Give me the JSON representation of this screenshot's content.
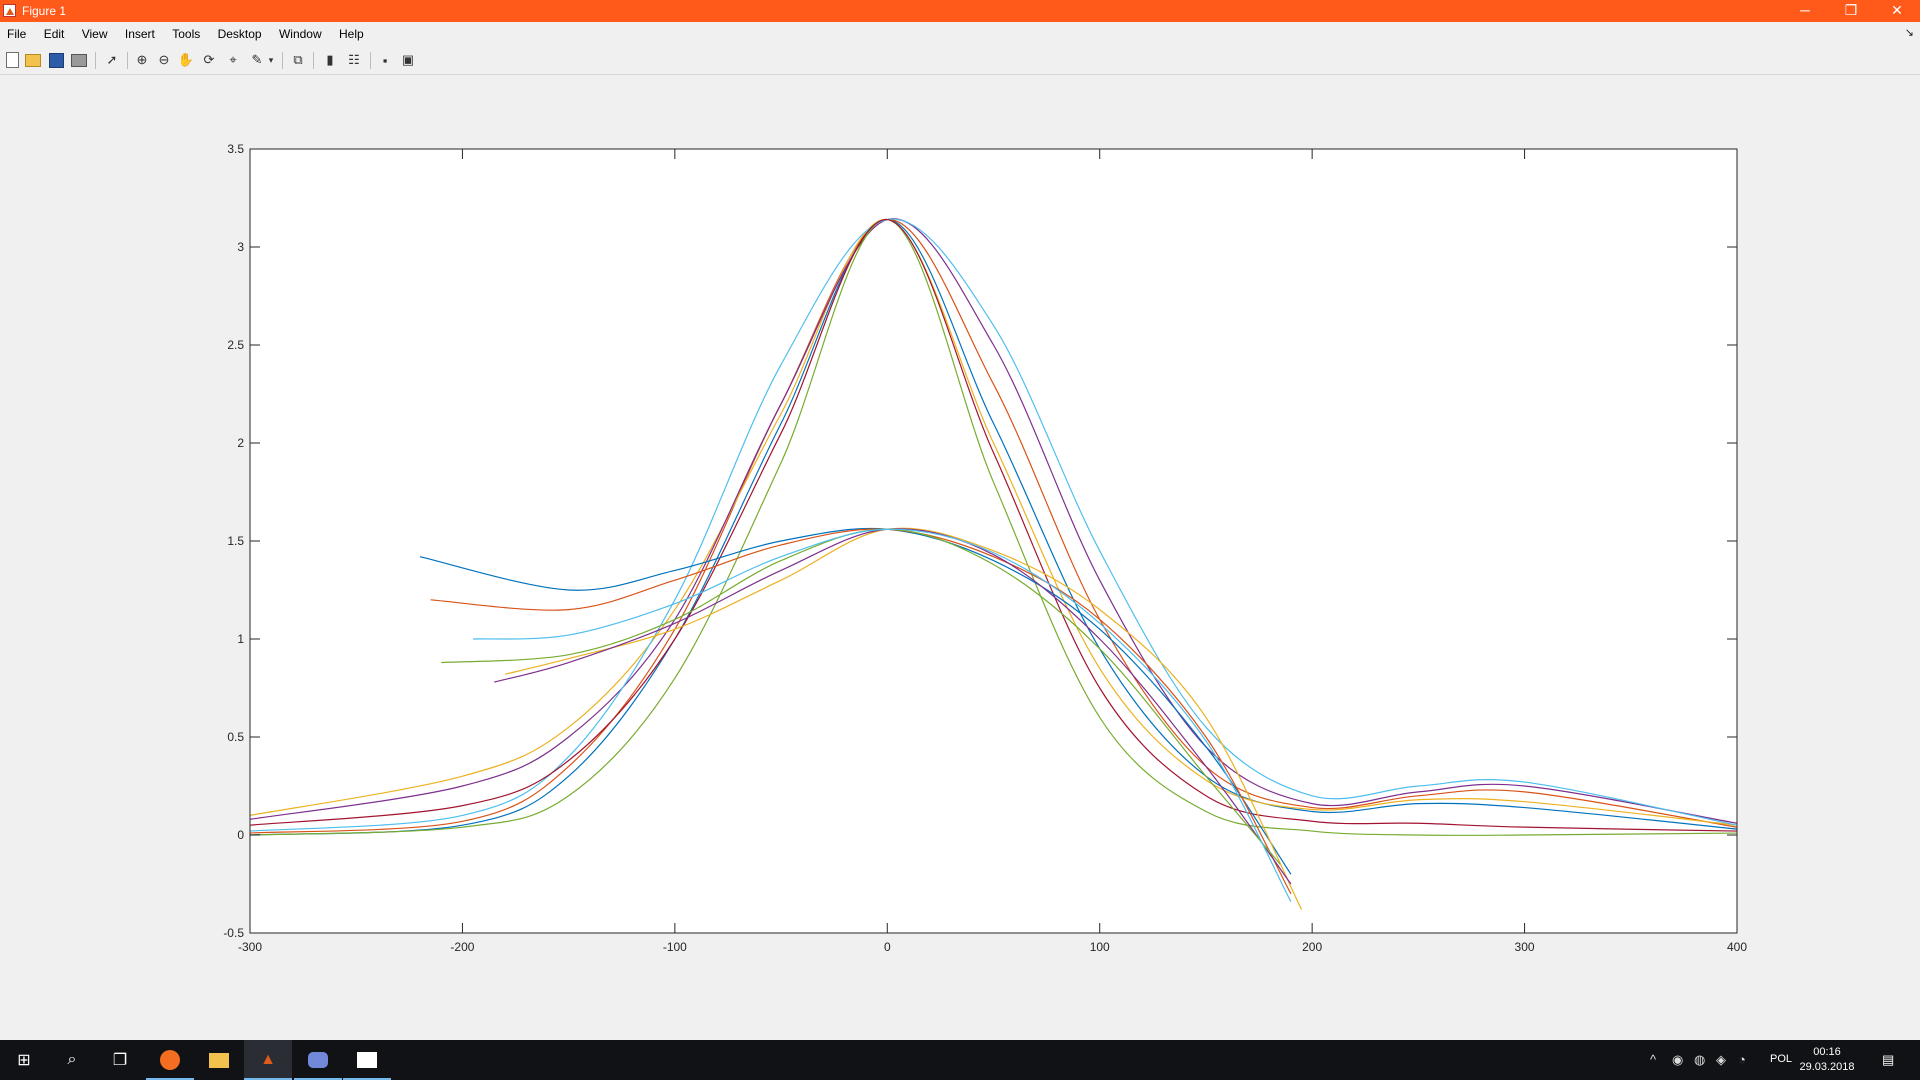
{
  "window": {
    "title": "Figure 1",
    "buttons": {
      "minimize": "─",
      "restore": "❐",
      "close": "✕"
    }
  },
  "menu": [
    "File",
    "Edit",
    "View",
    "Insert",
    "Tools",
    "Desktop",
    "Window",
    "Help"
  ],
  "toolbar": [
    "new-figure-icon",
    "open-file-icon",
    "save-icon",
    "print-icon",
    "edit-plot-arrow-icon",
    "zoom-in-icon",
    "zoom-out-icon",
    "pan-hand-icon",
    "rotate-3d-icon",
    "data-cursor-icon",
    "brush-icon",
    "brush-dropdown-icon",
    "link-plot-icon",
    "insert-colorbar-icon",
    "insert-legend-icon",
    "hide-plot-tools-icon",
    "show-plot-tools-icon"
  ],
  "chart_data": {
    "type": "line",
    "title": "",
    "xlabel": "",
    "ylabel": "",
    "xlim": [
      -300,
      400
    ],
    "ylim": [
      -0.5,
      3.5
    ],
    "xticks": [
      -300,
      -200,
      -100,
      0,
      100,
      200,
      300,
      400
    ],
    "yticks": [
      -0.5,
      0,
      0.5,
      1,
      1.5,
      2,
      2.5,
      3,
      3.5
    ],
    "grid": false,
    "legend": "none",
    "colors": [
      "#0072BD",
      "#D95319",
      "#EDB120",
      "#7E2F8E",
      "#77AC30",
      "#4DBEEE",
      "#A2142F"
    ],
    "series": [
      {
        "x": [
          -300,
          -200,
          -150,
          -100,
          -50,
          0,
          50,
          100,
          150,
          200,
          250,
          300,
          400
        ],
        "y": [
          0.0,
          0.05,
          0.3,
          1.0,
          2.1,
          3.14,
          2.1,
          0.95,
          0.3,
          0.12,
          0.16,
          0.14,
          0.03
        ]
      },
      {
        "x": [
          -300,
          -200,
          -150,
          -100,
          -50,
          0,
          50,
          100,
          150,
          200,
          250,
          300,
          400
        ],
        "y": [
          0.01,
          0.07,
          0.35,
          1.05,
          2.2,
          3.14,
          2.3,
          1.1,
          0.35,
          0.14,
          0.2,
          0.22,
          0.04
        ]
      },
      {
        "x": [
          -300,
          -200,
          -150,
          -100,
          -50,
          0,
          50,
          100,
          150,
          200,
          250,
          300,
          400
        ],
        "y": [
          0.1,
          0.3,
          0.55,
          1.15,
          2.15,
          3.14,
          2.0,
          0.85,
          0.28,
          0.13,
          0.18,
          0.17,
          0.05
        ]
      },
      {
        "x": [
          -300,
          -200,
          -150,
          -100,
          -50,
          0,
          50,
          100,
          150,
          200,
          250,
          300,
          400
        ],
        "y": [
          0.08,
          0.25,
          0.5,
          1.1,
          2.2,
          3.14,
          2.5,
          1.3,
          0.45,
          0.16,
          0.22,
          0.25,
          0.06
        ]
      },
      {
        "x": [
          -300,
          -200,
          -150,
          -100,
          -50,
          0,
          50,
          100,
          150,
          200,
          250,
          300,
          400
        ],
        "y": [
          0.0,
          0.04,
          0.2,
          0.8,
          1.9,
          3.14,
          1.8,
          0.6,
          0.12,
          0.02,
          0.0,
          0.0,
          0.01
        ]
      },
      {
        "x": [
          -300,
          -200,
          -150,
          -100,
          -50,
          0,
          50,
          100,
          150,
          200,
          250,
          300,
          400
        ],
        "y": [
          0.02,
          0.1,
          0.4,
          1.2,
          2.4,
          3.14,
          2.6,
          1.45,
          0.55,
          0.2,
          0.25,
          0.27,
          0.05
        ]
      },
      {
        "x": [
          -300,
          -200,
          -150,
          -100,
          -50,
          0,
          50,
          100,
          150,
          200,
          250,
          300,
          400
        ],
        "y": [
          0.05,
          0.15,
          0.38,
          1.0,
          2.05,
          3.14,
          1.95,
          0.75,
          0.2,
          0.07,
          0.06,
          0.04,
          0.02
        ]
      },
      {
        "x": [
          -220,
          -150,
          -100,
          -50,
          0,
          50,
          100,
          150,
          190
        ],
        "y": [
          1.42,
          1.25,
          1.35,
          1.5,
          1.56,
          1.4,
          1.05,
          0.45,
          -0.2
        ]
      },
      {
        "x": [
          -215,
          -150,
          -100,
          -50,
          0,
          50,
          100,
          150,
          190
        ],
        "y": [
          1.2,
          1.15,
          1.3,
          1.48,
          1.56,
          1.42,
          1.1,
          0.5,
          -0.3
        ]
      },
      {
        "x": [
          -180,
          -150,
          -100,
          -50,
          0,
          50,
          100,
          150,
          195
        ],
        "y": [
          0.82,
          0.9,
          1.05,
          1.3,
          1.56,
          1.45,
          1.15,
          0.6,
          -0.38
        ]
      },
      {
        "x": [
          -185,
          -150,
          -100,
          -50,
          0,
          50,
          100,
          150,
          190
        ],
        "y": [
          0.78,
          0.88,
          1.08,
          1.35,
          1.56,
          1.43,
          1.0,
          0.35,
          -0.25
        ]
      },
      {
        "x": [
          -210,
          -150,
          -100,
          -50,
          0,
          50,
          100,
          150,
          185
        ],
        "y": [
          0.88,
          0.92,
          1.1,
          1.4,
          1.56,
          1.38,
          0.95,
          0.3,
          -0.15
        ]
      },
      {
        "x": [
          -195,
          -150,
          -100,
          -50,
          0,
          50,
          100,
          150,
          190
        ],
        "y": [
          1.0,
          1.02,
          1.18,
          1.42,
          1.56,
          1.44,
          1.08,
          0.48,
          -0.34
        ]
      }
    ]
  },
  "taskbar": {
    "apps": [
      "start-icon",
      "search-icon",
      "task-view-icon",
      "firefox-icon",
      "file-explorer-icon",
      "matlab-icon",
      "discord-icon",
      "photos-icon"
    ],
    "tray": [
      "tray-overflow-icon",
      "discord-tray-icon",
      "steam-icon",
      "dropbox-icon",
      "network-icon"
    ],
    "language": "POL",
    "time": "00:16",
    "date": "29.03.2018"
  }
}
